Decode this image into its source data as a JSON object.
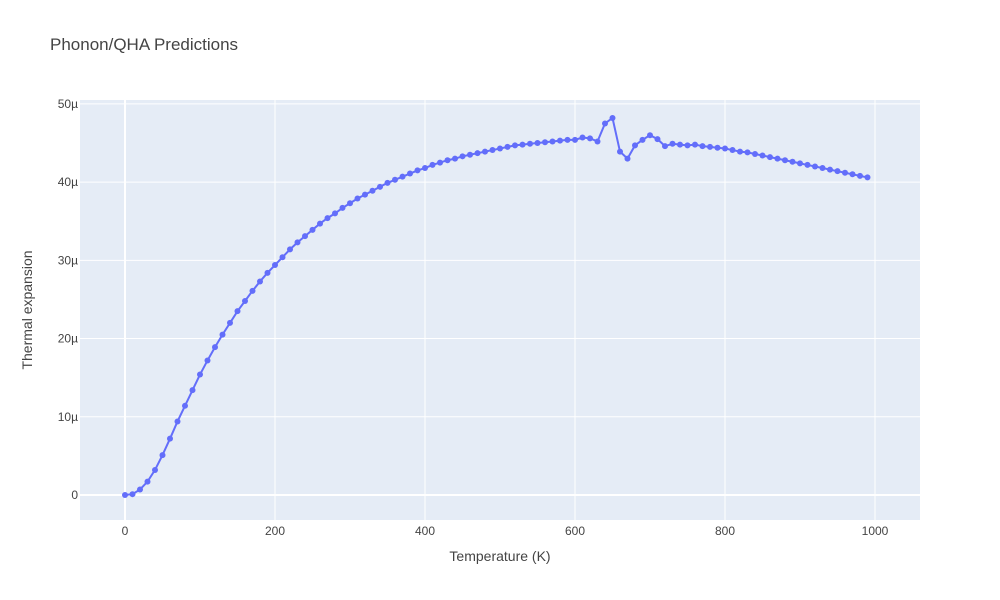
{
  "chart_data": {
    "type": "line",
    "title": "Phonon/QHA Predictions",
    "xlabel": "Temperature (K)",
    "ylabel": "Thermal expansion",
    "xlim": [
      -60,
      1060
    ],
    "ylim": [
      -3.2e-06,
      5.05e-05
    ],
    "grid": true,
    "legend": "none",
    "x_ticks": [
      {
        "value": 0,
        "label": "0"
      },
      {
        "value": 200,
        "label": "200"
      },
      {
        "value": 400,
        "label": "400"
      },
      {
        "value": 600,
        "label": "600"
      },
      {
        "value": 800,
        "label": "800"
      },
      {
        "value": 1000,
        "label": "1000"
      }
    ],
    "y_ticks": [
      {
        "value": 0,
        "label": "0"
      },
      {
        "value": 1e-05,
        "label": "10µ"
      },
      {
        "value": 2e-05,
        "label": "20µ"
      },
      {
        "value": 3e-05,
        "label": "30µ"
      },
      {
        "value": 4e-05,
        "label": "40µ"
      },
      {
        "value": 5e-05,
        "label": "50µ"
      }
    ],
    "colors": {
      "plot_bg": "#e5ecf6",
      "grid": "#ffffff",
      "series": "#636efa",
      "text": "#444444"
    },
    "series": [
      {
        "x": [
          0,
          10,
          20,
          30,
          40,
          50,
          60,
          70,
          80,
          90,
          100,
          110,
          120,
          130,
          140,
          150,
          160,
          170,
          180,
          190,
          200,
          210,
          220,
          230,
          240,
          250,
          260,
          270,
          280,
          290,
          300,
          310,
          320,
          330,
          340,
          350,
          360,
          370,
          380,
          390,
          400,
          410,
          420,
          430,
          440,
          450,
          460,
          470,
          480,
          490,
          500,
          510,
          520,
          530,
          540,
          550,
          560,
          570,
          580,
          590,
          600,
          610,
          620,
          630,
          640,
          650,
          660,
          670,
          680,
          690,
          700,
          710,
          720,
          730,
          740,
          750,
          760,
          770,
          780,
          790,
          800,
          810,
          820,
          830,
          840,
          850,
          860,
          870,
          880,
          890,
          900,
          910,
          920,
          930,
          940,
          950,
          960,
          970,
          980,
          990
        ],
        "values": [
          0.0,
          1e-07,
          7e-07,
          1.7e-06,
          3.2e-06,
          5.1e-06,
          7.2e-06,
          9.4e-06,
          1.14e-05,
          1.34e-05,
          1.54e-05,
          1.72e-05,
          1.89e-05,
          2.05e-05,
          2.2e-05,
          2.35e-05,
          2.48e-05,
          2.61e-05,
          2.73e-05,
          2.84e-05,
          2.94e-05,
          3.04e-05,
          3.14e-05,
          3.23e-05,
          3.31e-05,
          3.39e-05,
          3.47e-05,
          3.54e-05,
          3.6e-05,
          3.67e-05,
          3.73e-05,
          3.79e-05,
          3.84e-05,
          3.89e-05,
          3.94e-05,
          3.99e-05,
          4.03e-05,
          4.07e-05,
          4.11e-05,
          4.15e-05,
          4.18e-05,
          4.22e-05,
          4.25e-05,
          4.28e-05,
          4.3e-05,
          4.33e-05,
          4.35e-05,
          4.37e-05,
          4.39e-05,
          4.41e-05,
          4.43e-05,
          4.45e-05,
          4.47e-05,
          4.48e-05,
          4.49e-05,
          4.5e-05,
          4.51e-05,
          4.52e-05,
          4.53e-05,
          4.54e-05,
          4.54e-05,
          4.57e-05,
          4.56e-05,
          4.52e-05,
          4.75e-05,
          4.82e-05,
          4.39e-05,
          4.3e-05,
          4.47e-05,
          4.54e-05,
          4.6e-05,
          4.55e-05,
          4.46e-05,
          4.49e-05,
          4.48e-05,
          4.47e-05,
          4.48e-05,
          4.46e-05,
          4.45e-05,
          4.44e-05,
          4.43e-05,
          4.41e-05,
          4.39e-05,
          4.38e-05,
          4.36e-05,
          4.34e-05,
          4.32e-05,
          4.3e-05,
          4.28e-05,
          4.26e-05,
          4.24e-05,
          4.22e-05,
          4.2e-05,
          4.18e-05,
          4.16e-05,
          4.14e-05,
          4.12e-05,
          4.1e-05,
          4.08e-05,
          4.06e-05
        ]
      }
    ]
  }
}
